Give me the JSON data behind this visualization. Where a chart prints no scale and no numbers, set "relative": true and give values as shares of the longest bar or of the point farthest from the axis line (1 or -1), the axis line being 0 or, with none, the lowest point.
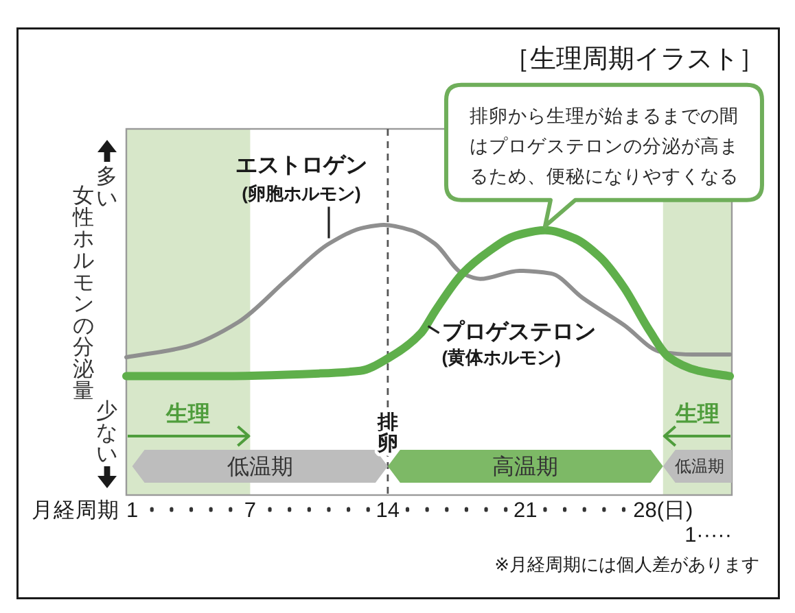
{
  "chart_data": {
    "type": "line",
    "title": "［生理周期イラスト］",
    "xlabel": "月経周期",
    "ylabel": "女性ホルモンの分泌量",
    "relative": true,
    "xlim": [
      0.7,
      31.5
    ],
    "xticks": [
      1,
      {
        "value": 2,
        "label": null
      },
      {
        "value": 3,
        "label": null
      },
      {
        "value": 4,
        "label": null
      },
      {
        "value": 5,
        "label": null
      },
      {
        "value": 6,
        "label": null
      },
      7,
      {
        "value": 8,
        "label": null
      },
      {
        "value": 9,
        "label": null
      },
      {
        "value": 10,
        "label": null
      },
      {
        "value": 11,
        "label": null
      },
      {
        "value": 12,
        "label": null
      },
      {
        "value": 13,
        "label": null
      },
      14,
      {
        "value": 15,
        "label": null
      },
      {
        "value": 16,
        "label": null
      },
      {
        "value": 17,
        "label": null
      },
      {
        "value": 18,
        "label": null
      },
      {
        "value": 19,
        "label": null
      },
      {
        "value": 20,
        "label": null
      },
      21,
      {
        "value": 22,
        "label": null
      },
      {
        "value": 23,
        "label": null
      },
      {
        "value": 24,
        "label": null
      },
      {
        "value": 25,
        "label": null
      },
      {
        "value": 26,
        "label": null
      },
      {
        "value": 28,
        "label": "28(日)"
      }
    ],
    "series": [
      {
        "name": "エストロゲン\n(卵胞ホルモン)",
        "color": "#8f8f8f",
        "x": [
          0.7,
          3.8,
          6.4,
          8.9,
          11.0,
          12.8,
          13.8,
          15.2,
          16.4,
          17.8,
          18.7,
          20.7,
          22.3,
          23.9,
          26.0,
          27.9,
          29.5,
          31.4
        ],
        "values": [
          0.51,
          0.55,
          0.64,
          0.8,
          0.93,
          0.99,
          1,
          0.98,
          0.93,
          0.82,
          0.8,
          0.83,
          0.82,
          0.73,
          0.63,
          0.53,
          0.52,
          0.52
        ]
      },
      {
        "name": "プロゲステロン\n(黄体ホルモン)",
        "color": "#5faf4b",
        "x": [
          0.7,
          5.1,
          10.5,
          12.6,
          14.1,
          15.7,
          16.4,
          17.8,
          19.1,
          20.5,
          22.0,
          23.5,
          24.8,
          26.0,
          27.3,
          28.3,
          29.8,
          31.4
        ],
        "values": [
          0.44,
          0.44,
          0.45,
          0.46,
          0.51,
          0.6,
          0.68,
          0.82,
          0.9,
          0.96,
          0.98,
          0.95,
          0.88,
          0.77,
          0.61,
          0.51,
          0.46,
          0.44
        ]
      }
    ],
    "ref_lines": [
      {
        "axis": "x",
        "value": 14,
        "label": "排卵",
        "color": "#555555",
        "line_style": "dashed"
      }
    ],
    "bands": [
      {
        "axis": "x",
        "from": 0.7,
        "to": 7,
        "label": "生理",
        "color": "#d7e7c9"
      },
      {
        "axis": "x",
        "from": 28,
        "to": 31.5,
        "label": "生理",
        "color": "#d7e7c9"
      },
      {
        "axis": "x",
        "from": 1,
        "to": 14,
        "label": "低温期",
        "color": "#bdbdbd"
      },
      {
        "axis": "x",
        "from": 14,
        "to": 28,
        "label": "高温期",
        "color": "#7db966"
      },
      {
        "axis": "x",
        "from": 28,
        "to": 31.5,
        "label": "低温期",
        "color": "#bdbdbd"
      }
    ],
    "annotations": [
      {
        "text": "排卵から生理が始まるまでの間はプロゲステロンの分泌が高まるため、便秘になりやすくなる",
        "x": 22.0,
        "y": 0.98
      },
      "多い",
      "少ない",
      "1·····",
      "※月経周期には個人差があります"
    ]
  }
}
